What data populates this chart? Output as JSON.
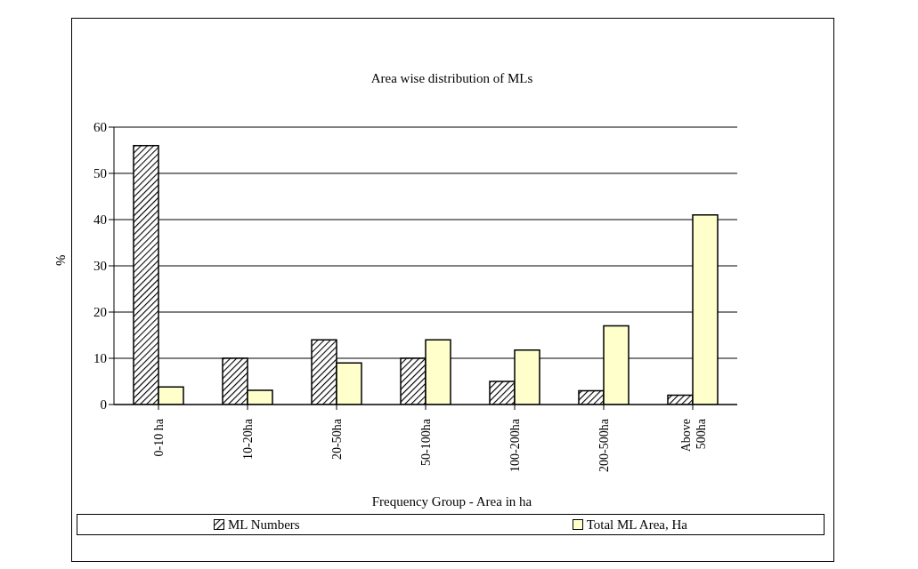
{
  "chart_data": {
    "type": "bar",
    "title": "Area wise distribution of MLs",
    "xlabel": "Frequency Group - Area in ha",
    "ylabel": "%",
    "categories": [
      "0-10 ha",
      "10-20ha",
      "20-50ha",
      "50-100ha",
      "100-200ha",
      "200-500ha",
      "Above 500ha"
    ],
    "series": [
      {
        "name": "ML Numbers",
        "color": "#000000",
        "values": [
          56,
          10,
          14,
          10,
          5,
          3,
          2
        ]
      },
      {
        "name": "Total ML Area, Ha",
        "color": "#ffffcc",
        "values": [
          3.8,
          3.1,
          9,
          14,
          11.8,
          17,
          41
        ]
      }
    ],
    "ylim": [
      0,
      60
    ],
    "yticks": [
      0,
      10,
      20,
      30,
      40,
      50,
      60
    ],
    "grid": "y",
    "legend": "bottom"
  }
}
